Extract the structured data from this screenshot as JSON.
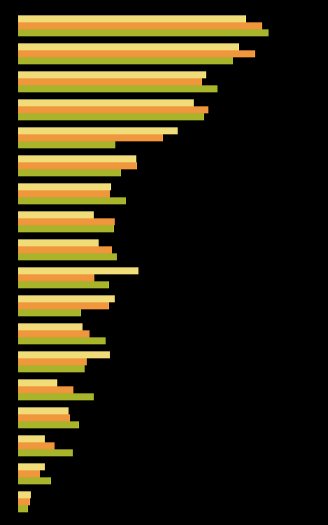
{
  "chart_data": {
    "type": "bar",
    "orientation": "horizontal",
    "tick_labels": false,
    "grid": false,
    "categories": [
      null,
      null,
      null,
      null,
      null,
      null,
      null,
      null,
      null,
      null,
      null,
      null,
      null,
      null,
      null,
      null,
      null,
      null
    ],
    "xlim": [
      0,
      443
    ],
    "series": [
      {
        "color": "#f0dc78",
        "values": [
          326,
          316,
          269,
          251,
          228,
          169,
          133,
          108,
          115,
          172,
          138,
          92,
          131,
          56,
          72,
          38,
          38,
          18
        ]
      },
      {
        "color": "#f0963c",
        "values": [
          349,
          339,
          263,
          272,
          207,
          170,
          131,
          138,
          134,
          109,
          130,
          102,
          98,
          79,
          74,
          52,
          31,
          17
        ]
      },
      {
        "color": "#a8b42a",
        "values": [
          358,
          307,
          285,
          266,
          139,
          147,
          154,
          137,
          141,
          130,
          90,
          125,
          95,
          108,
          87,
          78,
          47,
          14
        ]
      }
    ]
  }
}
